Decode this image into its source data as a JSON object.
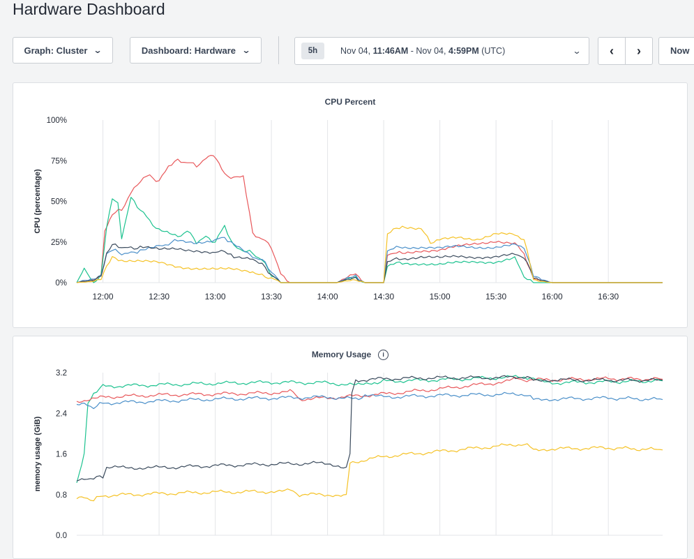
{
  "page": {
    "title": "Hardware Dashboard"
  },
  "toolbar": {
    "graph_label": "Graph: Cluster",
    "dashboard_label": "Dashboard: Hardware",
    "range_badge": "5h",
    "range_start_date": "Nov 04, ",
    "range_start_time": "11:46AM",
    "range_sep": " - Nov 04, ",
    "range_end_time": "4:59PM",
    "range_tz": " (UTC)",
    "now_label": "Now",
    "icons": {
      "chevron": "chevron-down-icon",
      "prev": "chevron-left-icon",
      "next": "chevron-right-icon",
      "info": "info-icon"
    }
  },
  "colors": {
    "red": "#e8575a",
    "green": "#1cc28f",
    "blue": "#4a8fc9",
    "dark": "#3a4a5c",
    "yellow": "#f5c226"
  },
  "chart_data": [
    {
      "type": "line",
      "title": "CPU Percent",
      "xlabel": "",
      "ylabel": "CPU (percentage)",
      "yticks": [
        "0%",
        "25%",
        "50%",
        "75%",
        "100%"
      ],
      "ylim": [
        0,
        100
      ],
      "xticks": [
        "12:00",
        "12:30",
        "13:00",
        "13:30",
        "14:00",
        "14:30",
        "15:00",
        "15:30",
        "16:00",
        "16:30"
      ],
      "xlim": [
        "11:46",
        "16:59"
      ],
      "grid": true,
      "series": [
        {
          "color": "#e8575a",
          "x": [
            "11:46",
            "11:55",
            "11:59",
            "12:01",
            "12:05",
            "12:10",
            "12:15",
            "12:20",
            "12:25",
            "12:30",
            "12:35",
            "12:40",
            "12:45",
            "12:50",
            "12:55",
            "12:59",
            "13:05",
            "13:10",
            "13:15",
            "13:20",
            "13:25",
            "13:30",
            "13:35",
            "13:40",
            "14:05",
            "14:15",
            "14:20",
            "14:30",
            "14:32",
            "14:40",
            "14:50",
            "15:00",
            "15:10",
            "15:20",
            "15:30",
            "15:40",
            "15:45",
            "15:50",
            "16:00",
            "16:59"
          ],
          "values": [
            0,
            2,
            5,
            32,
            42,
            45,
            55,
            63,
            66,
            62,
            72,
            75,
            74,
            72,
            76,
            78,
            67,
            64,
            66,
            30,
            27,
            22,
            5,
            0,
            0,
            5,
            0,
            0,
            18,
            18,
            20,
            20,
            22,
            24,
            26,
            24,
            18,
            2,
            0,
            0
          ]
        },
        {
          "color": "#1cc28f",
          "x": [
            "11:46",
            "11:50",
            "11:55",
            "11:59",
            "12:02",
            "12:05",
            "12:08",
            "12:10",
            "12:15",
            "12:20",
            "12:25",
            "12:30",
            "12:40",
            "12:45",
            "12:50",
            "12:55",
            "13:00",
            "13:05",
            "13:10",
            "13:15",
            "13:20",
            "13:25",
            "13:30",
            "13:35",
            "13:40",
            "14:05",
            "14:15",
            "14:20",
            "14:30",
            "14:32",
            "14:40",
            "14:50",
            "15:00",
            "15:10",
            "15:20",
            "15:30",
            "15:40",
            "15:45",
            "15:50",
            "16:00",
            "16:59"
          ],
          "values": [
            0,
            8,
            0,
            5,
            35,
            52,
            48,
            28,
            52,
            45,
            38,
            32,
            28,
            32,
            25,
            28,
            25,
            35,
            22,
            20,
            18,
            14,
            5,
            0,
            0,
            0,
            3,
            0,
            0,
            11,
            12,
            12,
            11,
            12,
            13,
            13,
            15,
            4,
            0,
            0,
            0
          ]
        },
        {
          "color": "#4a8fc9",
          "x": [
            "11:46",
            "11:55",
            "11:59",
            "12:02",
            "12:05",
            "12:10",
            "12:15",
            "12:20",
            "12:30",
            "12:35",
            "12:40",
            "12:50",
            "13:00",
            "13:05",
            "13:10",
            "13:20",
            "13:25",
            "13:30",
            "13:35",
            "13:40",
            "14:05",
            "14:15",
            "14:20",
            "14:30",
            "14:32",
            "14:40",
            "14:50",
            "15:00",
            "15:10",
            "15:20",
            "15:30",
            "15:40",
            "15:45",
            "15:50",
            "16:00",
            "16:59"
          ],
          "values": [
            0,
            3,
            5,
            18,
            20,
            18,
            18,
            20,
            22,
            24,
            26,
            25,
            26,
            28,
            23,
            16,
            14,
            7,
            0,
            0,
            0,
            4,
            0,
            0,
            20,
            22,
            22,
            21,
            22,
            22,
            22,
            23,
            22,
            4,
            0,
            0
          ]
        },
        {
          "color": "#3a4a5c",
          "x": [
            "11:46",
            "11:55",
            "11:59",
            "12:02",
            "12:05",
            "12:10",
            "12:15",
            "12:20",
            "12:30",
            "12:40",
            "12:50",
            "13:00",
            "13:05",
            "13:10",
            "13:20",
            "13:25",
            "13:30",
            "13:35",
            "13:40",
            "14:05",
            "14:15",
            "14:20",
            "14:30",
            "14:32",
            "14:40",
            "14:50",
            "15:00",
            "15:10",
            "15:20",
            "15:30",
            "15:40",
            "15:45",
            "15:50",
            "16:00",
            "16:59"
          ],
          "values": [
            0,
            2,
            5,
            18,
            23,
            22,
            21,
            22,
            20,
            21,
            20,
            18,
            20,
            15,
            15,
            11,
            5,
            0,
            0,
            0,
            3,
            0,
            0,
            13,
            15,
            16,
            15,
            16,
            16,
            16,
            17,
            16,
            3,
            0,
            0
          ]
        },
        {
          "color": "#f5c226",
          "x": [
            "11:46",
            "11:55",
            "11:59",
            "12:02",
            "12:05",
            "12:10",
            "12:20",
            "12:30",
            "12:40",
            "12:50",
            "13:00",
            "13:10",
            "13:20",
            "13:25",
            "13:30",
            "13:35",
            "13:40",
            "14:05",
            "14:15",
            "14:20",
            "14:30",
            "14:32",
            "14:40",
            "14:50",
            "14:55",
            "15:00",
            "15:10",
            "15:20",
            "15:30",
            "15:40",
            "15:45",
            "15:50",
            "16:00",
            "16:59"
          ],
          "values": [
            0,
            1,
            3,
            10,
            15,
            14,
            13,
            12,
            10,
            9,
            8,
            8,
            7,
            4,
            3,
            0,
            0,
            0,
            2,
            0,
            0,
            30,
            35,
            33,
            25,
            26,
            28,
            27,
            30,
            29,
            27,
            2,
            0,
            0
          ]
        }
      ]
    },
    {
      "type": "line",
      "title": "Memory Usage",
      "xlabel": "",
      "ylabel": "memory usage (GiB)",
      "yticks": [
        "0.0",
        "0.8",
        "1.6",
        "2.4",
        "3.2"
      ],
      "ylim": [
        0,
        3.2
      ],
      "xlim": [
        "11:46",
        "16:59"
      ],
      "grid": true,
      "series": [
        {
          "color": "#1cc28f",
          "x": [
            "11:46",
            "11:50",
            "11:52",
            "11:55",
            "12:00",
            "12:30",
            "13:00",
            "13:30",
            "14:00",
            "14:15",
            "14:25",
            "14:30",
            "15:00",
            "15:30",
            "15:45",
            "15:50",
            "16:00",
            "16:30",
            "16:59"
          ],
          "values": [
            1.0,
            1.6,
            2.6,
            2.8,
            2.93,
            2.96,
            2.99,
            3.01,
            3.0,
            2.95,
            3.0,
            3.03,
            3.06,
            3.1,
            3.12,
            3.06,
            3.0,
            3.02,
            3.04
          ]
        },
        {
          "color": "#e8575a",
          "x": [
            "11:46",
            "11:50",
            "12:00",
            "12:30",
            "13:00",
            "13:30",
            "13:40",
            "13:45",
            "14:00",
            "14:30",
            "15:00",
            "15:30",
            "15:40",
            "15:45",
            "16:00",
            "16:30",
            "16:59"
          ],
          "values": [
            2.6,
            2.62,
            2.72,
            2.76,
            2.78,
            2.8,
            2.86,
            2.68,
            2.7,
            2.78,
            2.88,
            3.0,
            3.08,
            3.06,
            3.06,
            3.08,
            3.07
          ]
        },
        {
          "color": "#4a8fc9",
          "x": [
            "11:46",
            "11:50",
            "11:55",
            "12:00",
            "12:30",
            "13:00",
            "13:30",
            "14:00",
            "14:15",
            "14:20",
            "14:30",
            "15:00",
            "15:30",
            "15:45",
            "15:50",
            "16:00",
            "16:30",
            "16:59"
          ],
          "values": [
            2.55,
            2.57,
            2.52,
            2.6,
            2.64,
            2.68,
            2.7,
            2.72,
            2.68,
            2.74,
            2.72,
            2.75,
            2.77,
            2.78,
            2.68,
            2.68,
            2.7,
            2.67
          ]
        },
        {
          "color": "#3a4a5c",
          "x": [
            "11:46",
            "11:50",
            "11:55",
            "12:00",
            "12:02",
            "12:30",
            "13:00",
            "13:30",
            "14:00",
            "14:10",
            "14:12",
            "14:13",
            "14:15",
            "14:30",
            "15:00",
            "15:30",
            "15:45",
            "15:50",
            "16:00",
            "16:30",
            "16:59"
          ],
          "values": [
            1.06,
            1.08,
            1.14,
            1.14,
            1.33,
            1.33,
            1.37,
            1.4,
            1.42,
            1.34,
            1.6,
            2.8,
            3.05,
            3.08,
            3.1,
            3.1,
            3.12,
            3.06,
            3.06,
            3.05,
            3.05
          ]
        },
        {
          "color": "#f5c226",
          "x": [
            "11:46",
            "11:50",
            "11:55",
            "12:00",
            "12:30",
            "13:00",
            "13:30",
            "13:40",
            "13:45",
            "14:00",
            "14:10",
            "14:12",
            "14:15",
            "14:30",
            "15:00",
            "15:30",
            "15:45",
            "15:50",
            "16:00",
            "16:30",
            "16:59"
          ],
          "values": [
            0.72,
            0.73,
            0.7,
            0.78,
            0.82,
            0.85,
            0.86,
            0.88,
            0.8,
            0.8,
            0.8,
            1.42,
            1.45,
            1.55,
            1.65,
            1.75,
            1.8,
            1.7,
            1.7,
            1.72,
            1.68
          ]
        }
      ]
    }
  ]
}
